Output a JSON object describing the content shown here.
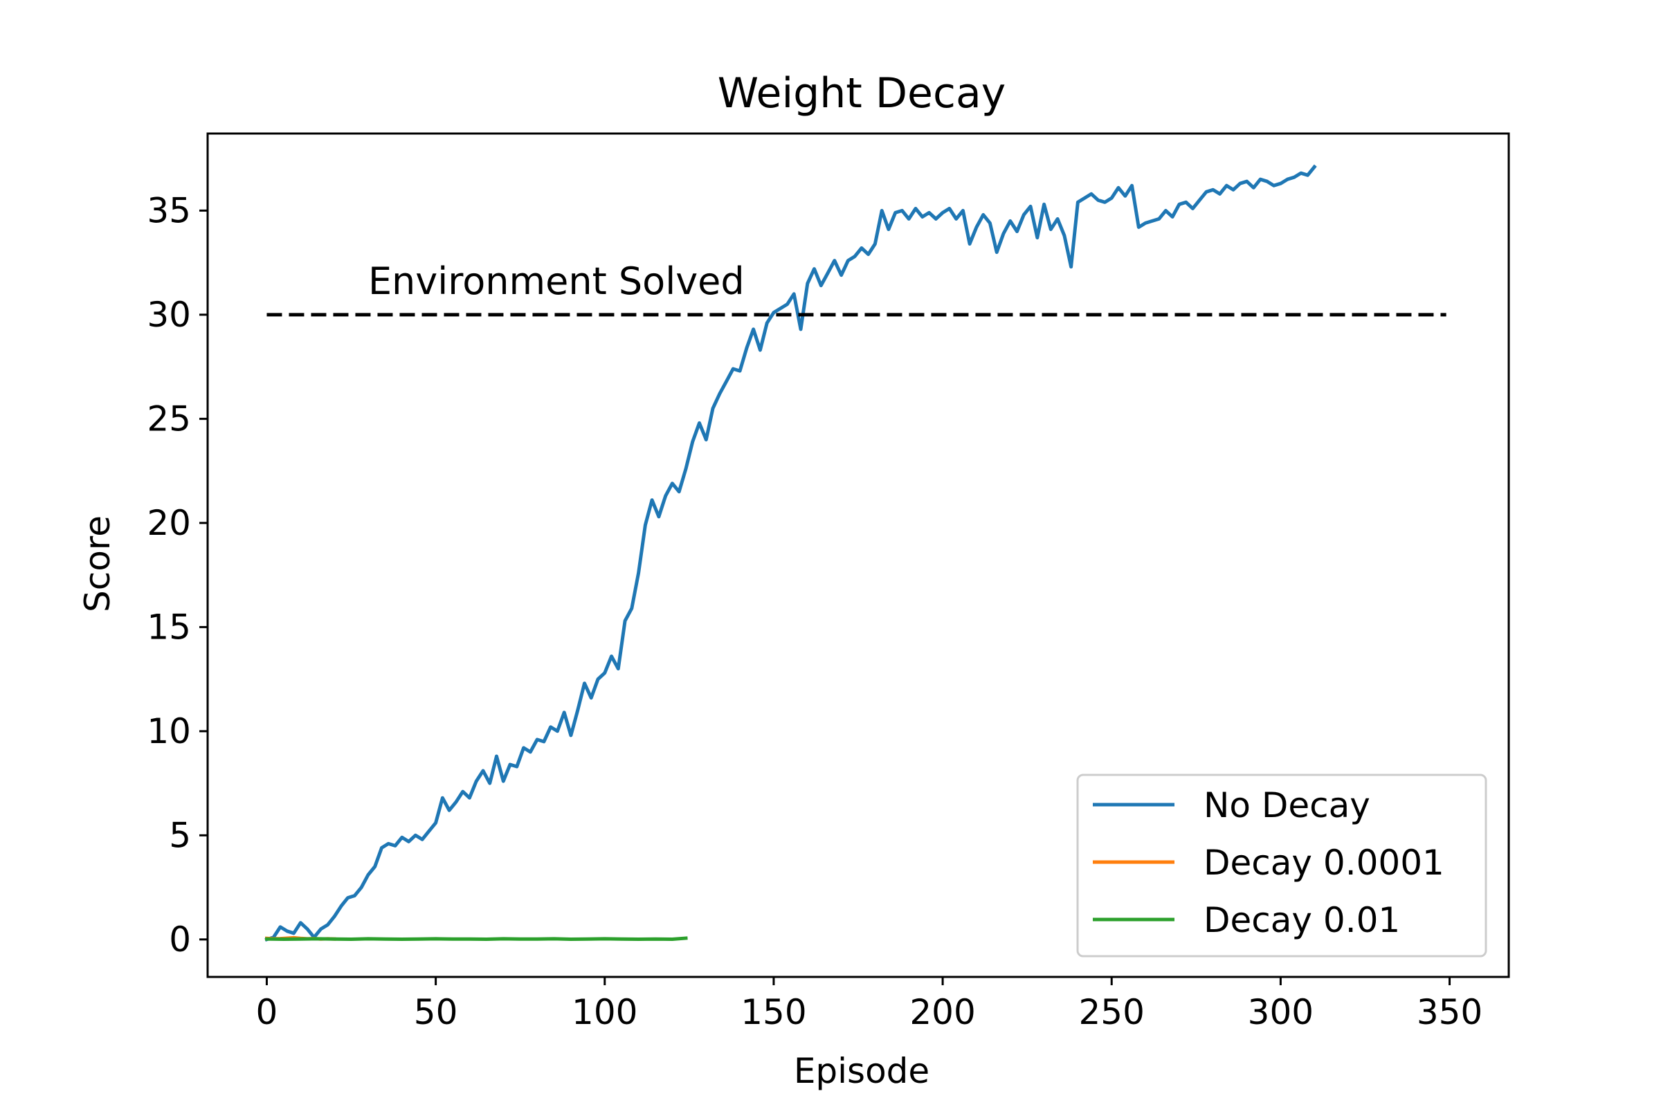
{
  "chart_data": {
    "type": "line",
    "title": "Weight Decay",
    "xlabel": "Episode",
    "ylabel": "Score",
    "xlim": [
      -17.5,
      367.5
    ],
    "ylim": [
      -1.8,
      38.7
    ],
    "xticks": [
      0,
      50,
      100,
      150,
      200,
      250,
      300,
      350
    ],
    "yticks": [
      0,
      5,
      10,
      15,
      20,
      25,
      30,
      35
    ],
    "grid": false,
    "legend_position": "bottom-right",
    "reference_line": {
      "y": 30,
      "x_range": [
        0,
        349
      ],
      "style": "dashed",
      "color": "#000000",
      "label": "Environment Solved"
    },
    "series": [
      {
        "name": "No Decay",
        "color": "#1f77b4",
        "x": [
          0,
          2,
          4,
          6,
          8,
          10,
          12,
          14,
          16,
          18,
          20,
          22,
          24,
          26,
          28,
          30,
          32,
          34,
          36,
          38,
          40,
          42,
          44,
          46,
          48,
          50,
          52,
          54,
          56,
          58,
          60,
          62,
          64,
          66,
          68,
          70,
          72,
          74,
          76,
          78,
          80,
          82,
          84,
          86,
          88,
          90,
          92,
          94,
          96,
          98,
          100,
          102,
          104,
          106,
          108,
          110,
          112,
          114,
          116,
          118,
          120,
          122,
          124,
          126,
          128,
          130,
          132,
          134,
          136,
          138,
          140,
          142,
          144,
          146,
          148,
          150,
          152,
          154,
          156,
          158,
          160,
          162,
          164,
          166,
          168,
          170,
          172,
          174,
          176,
          178,
          180,
          182,
          184,
          186,
          188,
          190,
          192,
          194,
          196,
          198,
          200,
          202,
          204,
          206,
          208,
          210,
          212,
          214,
          216,
          218,
          220,
          222,
          224,
          226,
          228,
          230,
          232,
          234,
          236,
          238,
          240,
          242,
          244,
          246,
          248,
          250,
          252,
          254,
          256,
          258,
          260,
          262,
          264,
          266,
          268,
          270,
          272,
          274,
          276,
          278,
          280,
          282,
          284,
          286,
          288,
          290,
          292,
          294,
          296,
          298,
          300,
          302,
          304,
          306,
          308,
          310
        ],
        "y": [
          0.0,
          0.1,
          0.6,
          0.4,
          0.3,
          0.8,
          0.5,
          0.1,
          0.5,
          0.7,
          1.1,
          1.6,
          2.0,
          2.1,
          2.5,
          3.1,
          3.5,
          4.4,
          4.6,
          4.5,
          4.9,
          4.7,
          5.0,
          4.8,
          5.2,
          5.6,
          6.8,
          6.2,
          6.6,
          7.1,
          6.8,
          7.6,
          8.1,
          7.5,
          8.8,
          7.6,
          8.4,
          8.3,
          9.2,
          9.0,
          9.6,
          9.5,
          10.2,
          10.0,
          10.9,
          9.8,
          11.0,
          12.3,
          11.6,
          12.5,
          12.8,
          13.6,
          13.0,
          15.3,
          15.9,
          17.6,
          19.9,
          21.1,
          20.3,
          21.3,
          21.9,
          21.5,
          22.6,
          23.9,
          24.8,
          24.0,
          25.5,
          26.2,
          26.8,
          27.4,
          27.3,
          28.4,
          29.3,
          28.3,
          29.6,
          30.1,
          30.3,
          30.5,
          31.0,
          29.3,
          31.5,
          32.2,
          31.4,
          32.0,
          32.6,
          31.9,
          32.6,
          32.8,
          33.2,
          32.9,
          33.4,
          35.0,
          34.1,
          34.9,
          35.0,
          34.6,
          35.1,
          34.7,
          34.9,
          34.6,
          34.9,
          35.1,
          34.6,
          35.0,
          33.4,
          34.2,
          34.8,
          34.4,
          33.0,
          33.9,
          34.5,
          34.0,
          34.8,
          35.2,
          33.7,
          35.3,
          34.1,
          34.6,
          33.8,
          32.3,
          35.4,
          35.6,
          35.8,
          35.5,
          35.4,
          35.6,
          36.1,
          35.7,
          36.2,
          34.2,
          34.4,
          34.5,
          34.6,
          35.0,
          34.7,
          35.3,
          35.4,
          35.1,
          35.5,
          35.9,
          36.0,
          35.8,
          36.2,
          36.0,
          36.3,
          36.4,
          36.1,
          36.5,
          36.4,
          36.2,
          36.3,
          36.5,
          36.6,
          36.8,
          36.7,
          37.1
        ]
      },
      {
        "name": "Decay 0.0001",
        "color": "#ff7f0e",
        "x": [
          0,
          2,
          4,
          6,
          8,
          10,
          12,
          14,
          16,
          18,
          20
        ],
        "y": [
          0.05,
          0.03,
          0.04,
          0.06,
          0.08,
          0.05,
          0.03,
          0.04,
          0.02,
          0.03,
          0.02
        ]
      },
      {
        "name": "Decay 0.01",
        "color": "#2ca02c",
        "x": [
          0,
          5,
          10,
          15,
          20,
          25,
          30,
          35,
          40,
          45,
          50,
          55,
          60,
          65,
          70,
          75,
          80,
          85,
          90,
          95,
          100,
          105,
          110,
          115,
          120,
          124
        ],
        "y": [
          0.02,
          0.01,
          0.02,
          0.03,
          0.02,
          0.01,
          0.03,
          0.02,
          0.01,
          0.02,
          0.03,
          0.02,
          0.02,
          0.01,
          0.03,
          0.02,
          0.02,
          0.03,
          0.01,
          0.02,
          0.03,
          0.02,
          0.01,
          0.02,
          0.01,
          0.06
        ]
      }
    ]
  }
}
